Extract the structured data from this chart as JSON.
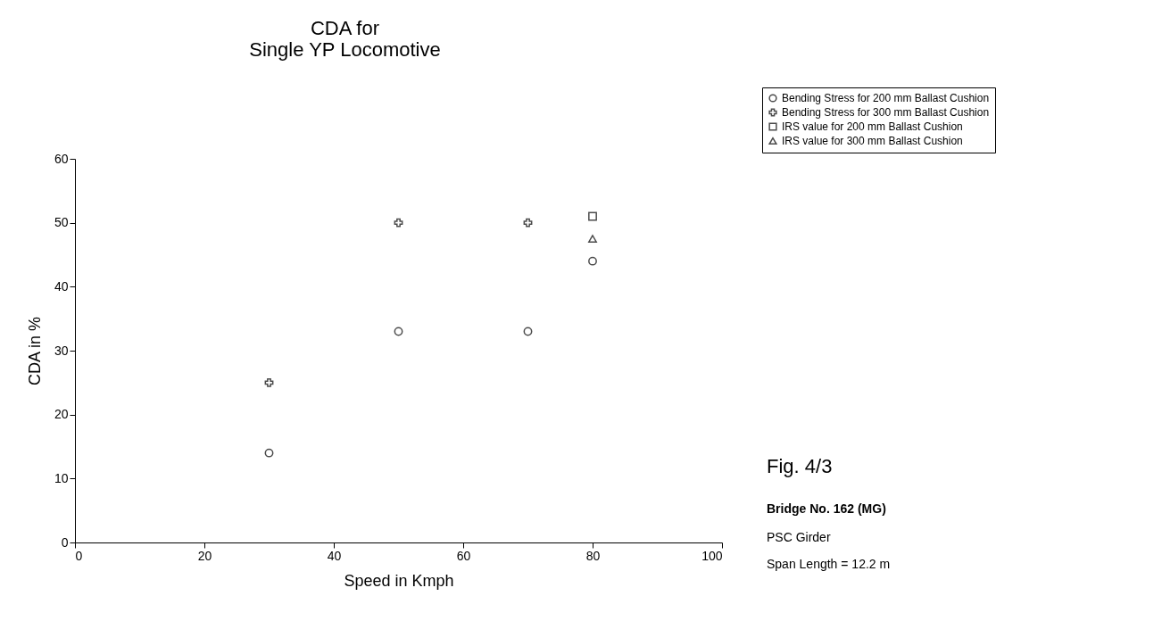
{
  "chart_data": {
    "type": "scatter",
    "title": [
      "CDA for",
      "Single YP Locomotive"
    ],
    "xlabel": "Speed in Kmph",
    "ylabel": "CDA in %",
    "xlim": [
      0,
      100
    ],
    "xticks": [
      0,
      20,
      40,
      60,
      80,
      100
    ],
    "ylim": [
      0,
      60
    ],
    "yticks": [
      0,
      10,
      20,
      30,
      40,
      50,
      60
    ],
    "grid": false,
    "legend": "top right",
    "series": [
      {
        "name": "Bending Stress for 200 mm Ballast Cushion",
        "color": "#000000",
        "marker": "circle",
        "x": [
          30,
          50,
          70,
          80
        ],
        "values": [
          14,
          33,
          33,
          44
        ]
      },
      {
        "name": "Bending Stress for 300 mm Ballast Cushion",
        "color": "#000000",
        "marker": "cross",
        "x": [
          30,
          50,
          70
        ],
        "values": [
          25,
          50,
          50
        ]
      },
      {
        "name": "IRS value for 200 mm Ballast Cushion",
        "color": "#000000",
        "marker": "square",
        "x": [
          80
        ],
        "values": [
          51
        ]
      },
      {
        "name": "IRS value for 300 mm Ballast Cushion",
        "color": "#000000",
        "marker": "triangle",
        "x": [
          80
        ],
        "values": [
          47.5
        ]
      }
    ],
    "annotations": [
      "Fig. 4/3",
      "Bridge No. 162 (MG)",
      "PSC Girder",
      "Span Length = 12.2 m"
    ]
  }
}
